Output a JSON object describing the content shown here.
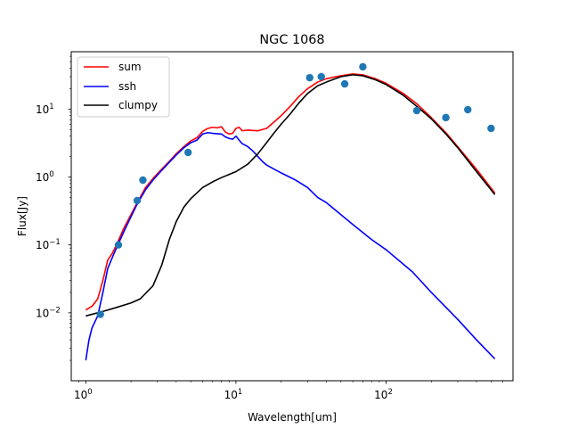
{
  "chart_data": {
    "type": "line",
    "title": "NGC 1068",
    "xlabel": "Wavelength[um]",
    "ylabel": "Flux[Jy]",
    "xscale": "log",
    "yscale": "log",
    "xlim": [
      0.8,
      700
    ],
    "ylim": [
      0.001,
      70
    ],
    "grid": false,
    "legend_position": "top-left",
    "x_ticks": [
      {
        "value": 1,
        "label": "10",
        "exp": "0"
      },
      {
        "value": 10,
        "label": "10",
        "exp": "1"
      },
      {
        "value": 100,
        "label": "10",
        "exp": "2"
      }
    ],
    "y_ticks": [
      {
        "value": 0.01,
        "label": "10",
        "exp": "−2"
      },
      {
        "value": 0.1,
        "label": "10",
        "exp": "−1"
      },
      {
        "value": 1,
        "label": "10",
        "exp": "0"
      },
      {
        "value": 10,
        "label": "10",
        "exp": "1"
      }
    ],
    "series": [
      {
        "name": "sum",
        "color": "#ff0000",
        "points": [
          [
            1.0,
            0.011
          ],
          [
            1.1,
            0.0125
          ],
          [
            1.2,
            0.016
          ],
          [
            1.3,
            0.03
          ],
          [
            1.4,
            0.06
          ],
          [
            1.5,
            0.075
          ],
          [
            1.6,
            0.1
          ],
          [
            1.8,
            0.18
          ],
          [
            2.0,
            0.28
          ],
          [
            2.2,
            0.42
          ],
          [
            2.5,
            0.7
          ],
          [
            2.8,
            0.95
          ],
          [
            3.2,
            1.3
          ],
          [
            3.6,
            1.7
          ],
          [
            4.0,
            2.2
          ],
          [
            4.5,
            2.8
          ],
          [
            5.0,
            3.4
          ],
          [
            5.5,
            3.8
          ],
          [
            6.0,
            4.7
          ],
          [
            6.5,
            5.2
          ],
          [
            7.0,
            5.4
          ],
          [
            7.5,
            5.3
          ],
          [
            8.0,
            5.5
          ],
          [
            8.5,
            4.6
          ],
          [
            9.0,
            4.3
          ],
          [
            9.5,
            4.4
          ],
          [
            10.0,
            5.2
          ],
          [
            10.5,
            5.4
          ],
          [
            11.0,
            4.8
          ],
          [
            12.0,
            4.9
          ],
          [
            14.0,
            4.8
          ],
          [
            16.0,
            5.2
          ],
          [
            18.0,
            6.5
          ],
          [
            20.0,
            8.0
          ],
          [
            23.0,
            11.0
          ],
          [
            26.0,
            15.0
          ],
          [
            30.0,
            20.0
          ],
          [
            35.0,
            25.0
          ],
          [
            40.0,
            28.0
          ],
          [
            50.0,
            31.0
          ],
          [
            60.0,
            33.0
          ],
          [
            70.0,
            32.0
          ],
          [
            85.0,
            28.0
          ],
          [
            100.0,
            24.0
          ],
          [
            130.0,
            17.0
          ],
          [
            160.0,
            12.0
          ],
          [
            200.0,
            7.5
          ],
          [
            250.0,
            4.5
          ],
          [
            300.0,
            2.8
          ],
          [
            400.0,
            1.3
          ],
          [
            530.0,
            0.58
          ]
        ]
      },
      {
        "name": "ssh",
        "color": "#0000ff",
        "points": [
          [
            1.0,
            0.002
          ],
          [
            1.05,
            0.004
          ],
          [
            1.1,
            0.006
          ],
          [
            1.2,
            0.009
          ],
          [
            1.3,
            0.02
          ],
          [
            1.4,
            0.045
          ],
          [
            1.5,
            0.065
          ],
          [
            1.6,
            0.09
          ],
          [
            1.8,
            0.16
          ],
          [
            2.0,
            0.26
          ],
          [
            2.2,
            0.4
          ],
          [
            2.5,
            0.65
          ],
          [
            2.8,
            0.9
          ],
          [
            3.2,
            1.25
          ],
          [
            3.6,
            1.65
          ],
          [
            4.0,
            2.1
          ],
          [
            4.5,
            2.7
          ],
          [
            5.0,
            3.2
          ],
          [
            5.5,
            3.5
          ],
          [
            6.0,
            4.3
          ],
          [
            6.5,
            4.5
          ],
          [
            7.0,
            4.4
          ],
          [
            8.0,
            4.3
          ],
          [
            8.5,
            3.9
          ],
          [
            9.0,
            3.7
          ],
          [
            9.5,
            3.6
          ],
          [
            10.0,
            4.0
          ],
          [
            10.5,
            3.5
          ],
          [
            11.0,
            3.1
          ],
          [
            12.0,
            2.8
          ],
          [
            13.0,
            2.4
          ],
          [
            14.0,
            2.0
          ],
          [
            15.0,
            1.7
          ],
          [
            16.0,
            1.5
          ],
          [
            18.0,
            1.3
          ],
          [
            20.0,
            1.15
          ],
          [
            25.0,
            0.9
          ],
          [
            30.0,
            0.7
          ],
          [
            35.0,
            0.5
          ],
          [
            40.0,
            0.42
          ],
          [
            60.0,
            0.2
          ],
          [
            80.0,
            0.12
          ],
          [
            100.0,
            0.085
          ],
          [
            150.0,
            0.04
          ],
          [
            200.0,
            0.02
          ],
          [
            300.0,
            0.008
          ],
          [
            400.0,
            0.004
          ],
          [
            530.0,
            0.0021
          ]
        ]
      },
      {
        "name": "clumpy",
        "color": "#000000",
        "points": [
          [
            1.0,
            0.009
          ],
          [
            1.3,
            0.0105
          ],
          [
            1.6,
            0.012
          ],
          [
            2.0,
            0.014
          ],
          [
            2.3,
            0.016
          ],
          [
            2.8,
            0.025
          ],
          [
            3.2,
            0.05
          ],
          [
            3.6,
            0.12
          ],
          [
            4.0,
            0.22
          ],
          [
            4.5,
            0.36
          ],
          [
            5.0,
            0.48
          ],
          [
            6.0,
            0.7
          ],
          [
            7.0,
            0.85
          ],
          [
            8.0,
            0.98
          ],
          [
            10.0,
            1.2
          ],
          [
            12.0,
            1.55
          ],
          [
            14.0,
            2.2
          ],
          [
            16.0,
            3.2
          ],
          [
            18.0,
            4.5
          ],
          [
            20.0,
            6.0
          ],
          [
            23.0,
            8.5
          ],
          [
            26.0,
            12.0
          ],
          [
            30.0,
            17.0
          ],
          [
            35.0,
            22.0
          ],
          [
            40.0,
            25.0
          ],
          [
            50.0,
            30.0
          ],
          [
            60.0,
            32.0
          ],
          [
            70.0,
            31.0
          ],
          [
            85.0,
            27.0
          ],
          [
            100.0,
            23.0
          ],
          [
            130.0,
            16.0
          ],
          [
            160.0,
            11.0
          ],
          [
            200.0,
            7.2
          ],
          [
            250.0,
            4.3
          ],
          [
            300.0,
            2.7
          ],
          [
            400.0,
            1.2
          ],
          [
            530.0,
            0.55
          ]
        ]
      },
      {
        "name": "",
        "type": "scatter",
        "color": "#1f77b4",
        "points": [
          [
            1.25,
            0.0095
          ],
          [
            1.65,
            0.1
          ],
          [
            2.2,
            0.45
          ],
          [
            2.4,
            0.9
          ],
          [
            4.8,
            2.3
          ],
          [
            31.0,
            29.0
          ],
          [
            37.0,
            30.0
          ],
          [
            53.0,
            23.5
          ],
          [
            70.0,
            42.0
          ],
          [
            160.0,
            9.5
          ],
          [
            250.0,
            7.5
          ],
          [
            350.0,
            9.8
          ],
          [
            500.0,
            5.2
          ]
        ]
      }
    ]
  }
}
